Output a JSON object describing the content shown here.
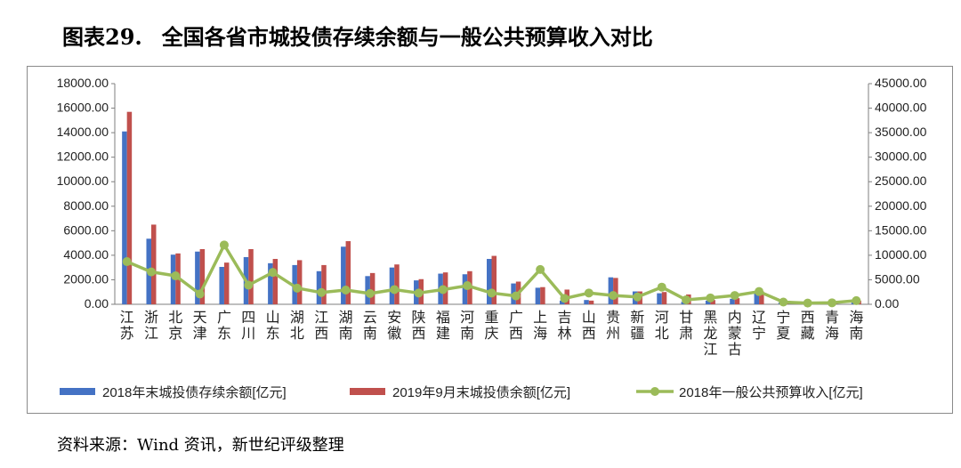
{
  "figure": {
    "label": "图表29.",
    "title": "全国各省市城投债存续余额与一般公共预算收入对比"
  },
  "source": "资料来源：Wind 资讯，新世纪评级整理",
  "colors": {
    "bar1": "#4472c4",
    "bar2": "#c0504d",
    "line": "#9bbb59"
  },
  "chart_data": {
    "type": "bar",
    "title": "",
    "categories": [
      "江苏",
      "浙江",
      "北京",
      "天津",
      "广东",
      "四川",
      "山东",
      "湖北",
      "江西",
      "湖南",
      "云南",
      "安徽",
      "陕西",
      "福建",
      "河南",
      "重庆",
      "广西",
      "上海",
      "吉林",
      "山西",
      "贵州",
      "新疆",
      "河北",
      "甘肃",
      "黑龙江",
      "内蒙古",
      "辽宁",
      "宁夏",
      "西藏",
      "青海",
      "海南"
    ],
    "y_left": {
      "min": 0,
      "max": 18000,
      "step": 2000,
      "format": "0.00"
    },
    "y_right": {
      "min": 0,
      "max": 45000,
      "step": 5000,
      "format": "0.00"
    },
    "series": [
      {
        "name": "2018年末城投债存续余额[亿元]",
        "type": "bar",
        "axis": "left",
        "values": [
          14100,
          5350,
          4050,
          4300,
          3050,
          3850,
          3350,
          3200,
          2700,
          4700,
          2300,
          3000,
          1950,
          2500,
          2450,
          3700,
          1700,
          1350,
          300,
          350,
          2200,
          1050,
          900,
          200,
          300,
          450,
          950,
          150,
          50,
          100,
          300
        ]
      },
      {
        "name": "2019年9月末城投债余额[亿元]",
        "type": "bar",
        "axis": "left",
        "values": [
          15700,
          6500,
          4150,
          4500,
          3400,
          4500,
          3700,
          3600,
          3200,
          5150,
          2550,
          3250,
          2050,
          2600,
          2700,
          3950,
          1850,
          1400,
          1200,
          300,
          2150,
          1050,
          1000,
          800,
          350,
          500,
          1050,
          150,
          50,
          100,
          300
        ]
      },
      {
        "name": "2018年一般公共预算收入[亿元]",
        "type": "line",
        "axis": "right",
        "values": [
          8700,
          6600,
          5800,
          2100,
          12100,
          3900,
          6500,
          3300,
          2400,
          2900,
          2200,
          3000,
          2300,
          3000,
          3800,
          2300,
          1700,
          7100,
          1200,
          2300,
          1800,
          1500,
          3500,
          900,
          1300,
          1800,
          2600,
          450,
          250,
          300,
          750
        ]
      }
    ],
    "legend_position": "bottom"
  }
}
